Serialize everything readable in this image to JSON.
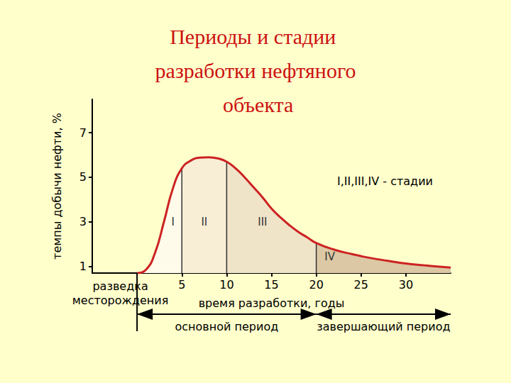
{
  "chart_data": {
    "type": "line",
    "title": "Периоды и стадии разработки нефтяного объекта",
    "x_label": "время разработки, годы",
    "y_label": "темпы добычи нефти, %",
    "x": [
      0,
      1,
      2,
      3,
      4,
      5,
      6,
      7,
      8,
      9,
      10,
      11,
      12,
      13,
      14,
      15,
      16,
      17,
      18,
      19,
      20,
      22,
      24,
      26,
      28,
      30,
      32,
      34,
      35
    ],
    "values": [
      0.7,
      0.85,
      1.6,
      3.0,
      4.5,
      5.4,
      5.75,
      5.88,
      5.9,
      5.85,
      5.7,
      5.4,
      5.0,
      4.55,
      4.1,
      3.6,
      3.2,
      2.85,
      2.55,
      2.3,
      2.05,
      1.75,
      1.55,
      1.38,
      1.25,
      1.13,
      1.05,
      0.98,
      0.95
    ],
    "color": "#cc2222",
    "xlim": [
      -5,
      35
    ],
    "xticks": [
      5,
      10,
      15,
      20,
      25,
      30
    ],
    "ylim": [
      0.7,
      8.5
    ],
    "yticks": [
      1,
      3,
      5,
      7
    ],
    "grid": false,
    "stages": [
      {
        "label": "I",
        "start": 0,
        "end": 5,
        "color": "#fffbea"
      },
      {
        "label": "II",
        "start": 5,
        "end": 10,
        "color": "#f8eed6"
      },
      {
        "label": "III",
        "start": 10,
        "end": 20,
        "color": "#efe3c8"
      },
      {
        "label": "IV",
        "start": 20,
        "end": 35,
        "color": "#dcc8a4"
      }
    ],
    "stage_legend": "I,II,III,IV - стадии",
    "exploration_label": [
      "разведка",
      "месторождения"
    ],
    "periods": [
      {
        "label": "основной период",
        "start": 0,
        "end": 20
      },
      {
        "label": "завершающий период",
        "start": 20,
        "end": 35
      }
    ]
  }
}
